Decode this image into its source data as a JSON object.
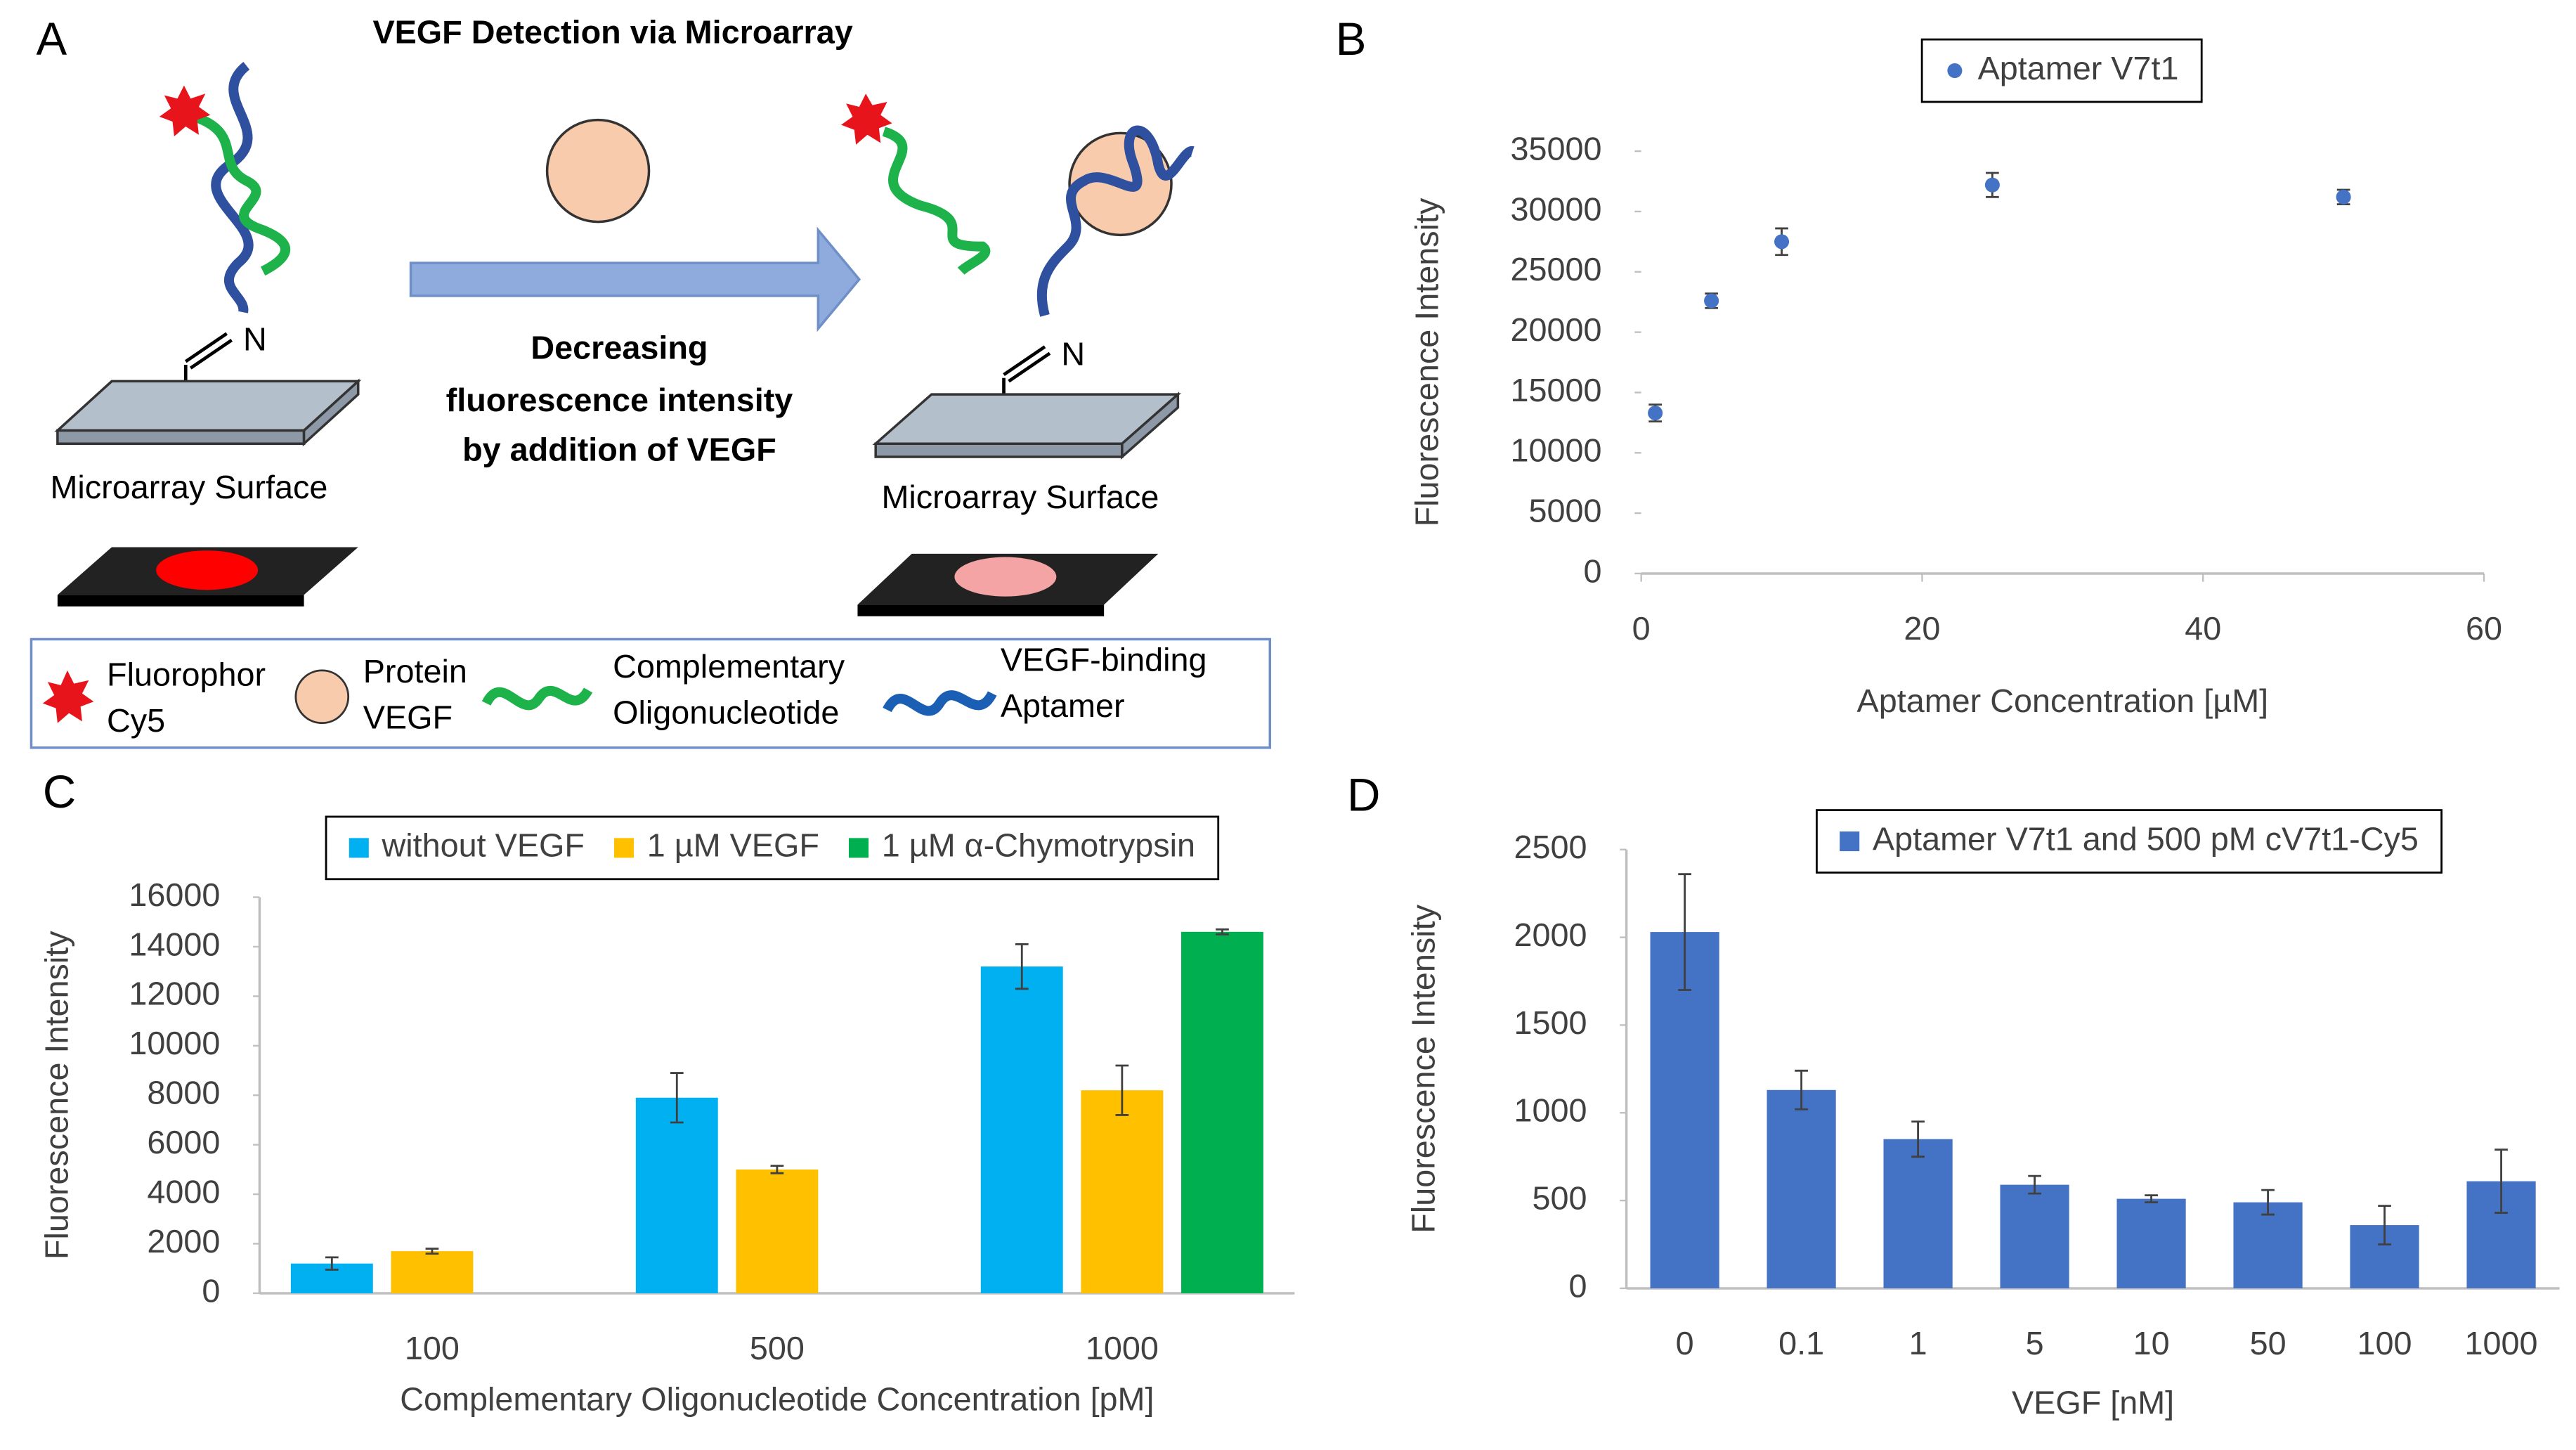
{
  "panel_labels": [
    "A",
    "B",
    "C",
    "D"
  ],
  "diagram": {
    "title": "VEGF Detection via Microarray",
    "n_labels": [
      "N",
      "N"
    ],
    "surface_labels": [
      "Microarray Surface",
      "Microarray Surface"
    ],
    "arrow_text": [
      "Decreasing",
      "fluorescence intensity",
      "by addition of VEGF"
    ],
    "legend": [
      {
        "lines": [
          "Fluorophor",
          "Cy5"
        ]
      },
      {
        "lines": [
          "Protein",
          "VEGF"
        ]
      },
      {
        "lines": [
          "Complementary",
          "Oligonucleotide"
        ]
      },
      {
        "lines": [
          "VEGF-binding",
          "Aptamer"
        ]
      }
    ]
  },
  "chart_data": [
    {
      "type": "scatter",
      "x": [
        1,
        5,
        10,
        25,
        50
      ],
      "series": [
        {
          "name": "Aptamer V7t1",
          "color": "#4472c4",
          "values": [
            13300,
            22600,
            27500,
            32200,
            31200
          ],
          "errors": [
            700,
            600,
            1100,
            1000,
            600
          ]
        }
      ],
      "x_label": "Aptamer Concentration [µM]",
      "y_label": "Fluorescence Intensity",
      "xlim": [
        0,
        60
      ],
      "xticks": [
        0,
        20,
        40,
        60
      ],
      "ylim": [
        0,
        35000
      ],
      "yticks": [
        0,
        5000,
        10000,
        15000,
        20000,
        25000,
        30000,
        35000
      ],
      "legend": "top"
    },
    {
      "type": "bar",
      "categories": [
        "100",
        "500",
        "1000"
      ],
      "series": [
        {
          "name": "without VEGF",
          "color": "#00b0f0",
          "values": [
            1200,
            7900,
            13200
          ],
          "errors": [
            250,
            1000,
            900
          ]
        },
        {
          "name": "1 µM VEGF",
          "color": "#ffc000",
          "values": [
            1700,
            5000,
            8200
          ],
          "errors": [
            100,
            150,
            1000
          ]
        },
        {
          "name": "1 µM α-Chymotrypsin",
          "color": "#00b050",
          "values": [
            null,
            null,
            14600
          ],
          "errors": [
            null,
            null,
            100
          ]
        }
      ],
      "x_label": "Complementary Oligonucleotide Concentration [pM]",
      "y_label": "Fluorescence Intensity",
      "ylim": [
        0,
        16000
      ],
      "yticks": [
        0,
        2000,
        4000,
        6000,
        8000,
        10000,
        12000,
        14000,
        16000
      ],
      "legend": "top"
    },
    {
      "type": "bar",
      "categories": [
        "0",
        "0.1",
        "1",
        "5",
        "10",
        "50",
        "100",
        "1000"
      ],
      "series": [
        {
          "name": "Aptamer V7t1 and 500 pM cV7t1-Cy5",
          "color": "#4472c4",
          "values": [
            2030,
            1130,
            850,
            590,
            510,
            490,
            360,
            610
          ],
          "errors": [
            330,
            110,
            100,
            50,
            20,
            70,
            110,
            180
          ]
        }
      ],
      "x_label": "VEGF [nM]",
      "y_label": "Fluorescence Intensity",
      "ylim": [
        0,
        2500
      ],
      "yticks": [
        0,
        500,
        1000,
        1500,
        2000,
        2500
      ],
      "legend": "top"
    }
  ]
}
